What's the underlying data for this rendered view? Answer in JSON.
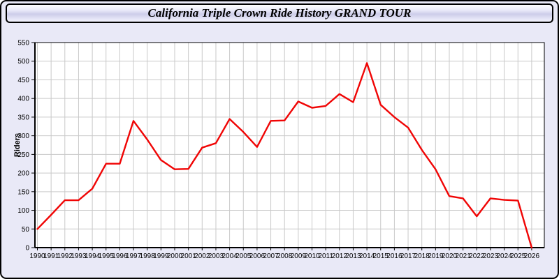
{
  "title": "California Triple Crown Ride History GRAND TOUR",
  "colors": {
    "page_bg": "#E9E9F7",
    "frame_border": "#000000",
    "plot_bg": "#FFFFFF",
    "grid": "#C9C9C9",
    "axis": "#000000",
    "line": "#F00505",
    "label_text": "#000000"
  },
  "chart_data": {
    "type": "line",
    "title": "California Triple Crown Ride History GRAND TOUR",
    "xlabel": "",
    "ylabel": "Riders",
    "ylim": [
      0,
      550
    ],
    "ytick_step": 50,
    "yticks": [
      0,
      50,
      100,
      150,
      200,
      250,
      300,
      350,
      400,
      450,
      500,
      550
    ],
    "grid": true,
    "legend": "none",
    "x": [
      1990,
      1991,
      1992,
      1993,
      1994,
      1995,
      1996,
      1997,
      1998,
      1999,
      2000,
      2001,
      2002,
      2003,
      2004,
      2005,
      2006,
      2007,
      2008,
      2009,
      2010,
      2011,
      2012,
      2013,
      2014,
      2015,
      2016,
      2017,
      2018,
      2019,
      2020,
      2021,
      2022,
      2023,
      2024,
      2025,
      2026
    ],
    "series": [
      {
        "name": "Riders",
        "color": "#F00505",
        "values": [
          50,
          88,
          127,
          127,
          158,
          225,
          225,
          340,
          290,
          235,
          210,
          211,
          268,
          280,
          345,
          310,
          270,
          340,
          341,
          392,
          375,
          380,
          412,
          390,
          495,
          383,
          350,
          322,
          262,
          210,
          138,
          132,
          84,
          132,
          128,
          126,
          0
        ]
      }
    ]
  }
}
